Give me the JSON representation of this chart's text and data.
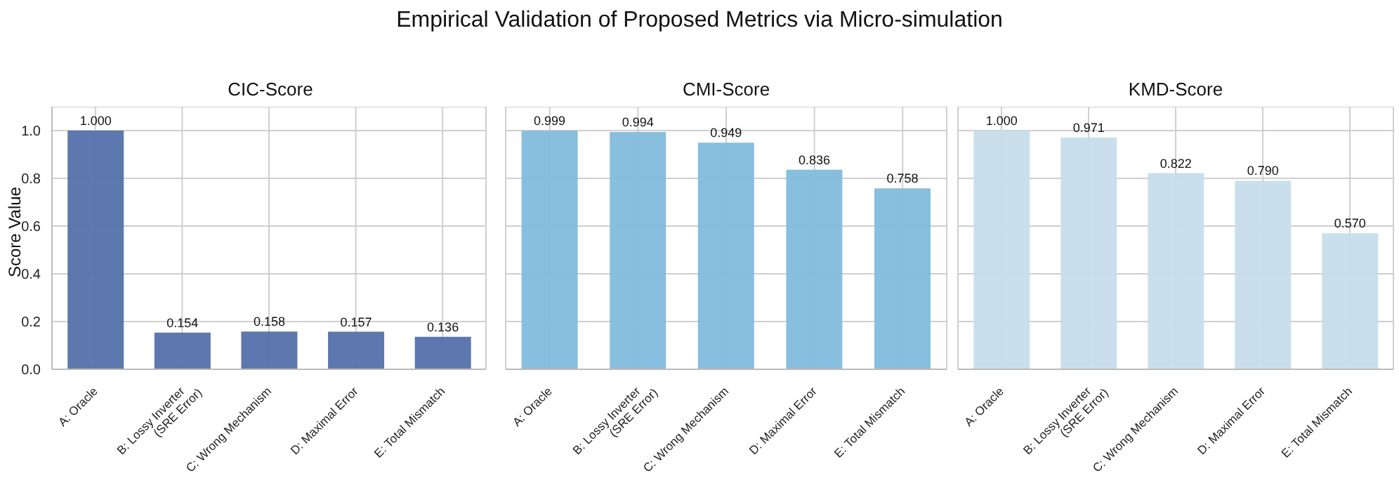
{
  "chart_data": [
    {
      "type": "bar",
      "title": "Empirical Validation of Proposed Metrics via Micro-simulation",
      "subtitle": "CIC-Score",
      "ylabel": "Score Value",
      "categories": [
        "A: Oracle",
        "B: Lossy Inverter\n(SRE Error)",
        "C: Wrong Mechanism",
        "D: Maximal Error",
        "E: Total Mismatch"
      ],
      "values": [
        1.0,
        0.154,
        0.158,
        0.157,
        0.136
      ],
      "value_labels": [
        "1.000",
        "0.154",
        "0.158",
        "0.157",
        "0.136"
      ],
      "color": "#5471ab",
      "ylim": [
        0,
        1.1
      ],
      "yticks": [
        {
          "value": 0,
          "label": "0.0"
        },
        {
          "value": 0.2,
          "label": "0.2"
        },
        {
          "value": 0.4,
          "label": "0.4"
        },
        {
          "value": 0.6,
          "label": "0.6"
        },
        {
          "value": 0.8,
          "label": "0.8"
        },
        {
          "value": 1,
          "label": "1.0"
        }
      ],
      "grid": true
    },
    {
      "type": "bar",
      "subtitle": "CMI-Score",
      "categories": [
        "A: Oracle",
        "B: Lossy Inverter\n(SRE Error)",
        "C: Wrong Mechanism",
        "D: Maximal Error",
        "E: Total Mismatch"
      ],
      "values": [
        0.999,
        0.994,
        0.949,
        0.836,
        0.758
      ],
      "value_labels": [
        "0.999",
        "0.994",
        "0.949",
        "0.836",
        "0.758"
      ],
      "color": "#82badc",
      "ylim": [
        0,
        1.1
      ],
      "yticks": [
        0,
        0.2,
        0.4,
        0.6,
        0.8,
        1
      ],
      "grid": true,
      "tick_labels": "x"
    },
    {
      "type": "bar",
      "subtitle": "KMD-Score",
      "categories": [
        "A: Oracle",
        "B: Lossy Inverter\n(SRE Error)",
        "C: Wrong Mechanism",
        "D: Maximal Error",
        "E: Total Mismatch"
      ],
      "values": [
        1.0,
        0.971,
        0.822,
        0.79,
        0.57
      ],
      "value_labels": [
        "1.000",
        "0.971",
        "0.822",
        "0.790",
        "0.570"
      ],
      "color": "#c6ddeb",
      "ylim": [
        0,
        1.1
      ],
      "yticks": [
        0,
        0.2,
        0.4,
        0.6,
        0.8,
        1
      ],
      "grid": true,
      "tick_labels": "x"
    }
  ]
}
